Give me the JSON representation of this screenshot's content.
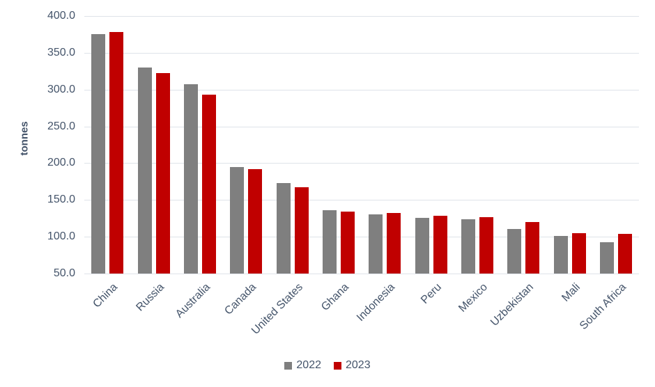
{
  "chart_data": {
    "type": "bar",
    "title": "",
    "xlabel": "",
    "ylabel": "tonnes",
    "categories": [
      "China",
      "Russia",
      "Australia",
      "Canada",
      "United States",
      "Ghana",
      "Indonesia",
      "Peru",
      "Mexico",
      "Uzbekistan",
      "Mali",
      "South Africa"
    ],
    "series": [
      {
        "name": "2022",
        "color": "#7f7f7f",
        "values": [
          375,
          330,
          307,
          194.5,
          173,
          136.5,
          130.5,
          125.5,
          123.5,
          110.5,
          101,
          92.5
        ]
      },
      {
        "name": "2023",
        "color": "#c00000",
        "values": [
          378.5,
          322,
          293.5,
          192,
          167,
          134.5,
          132,
          128.5,
          126.5,
          120,
          105,
          104
        ]
      }
    ],
    "ylim": [
      50,
      400
    ],
    "ytick_step": 50,
    "ytick_labels": [
      "400.0",
      "350.0",
      "300.0",
      "250.0",
      "200.0",
      "150.0",
      "100.0",
      "50.0"
    ],
    "grid": true,
    "legend_position": "bottom"
  },
  "colors": {
    "axis_text": "#44546a",
    "gridline": "#dee3e9",
    "background": "#ffffff"
  }
}
